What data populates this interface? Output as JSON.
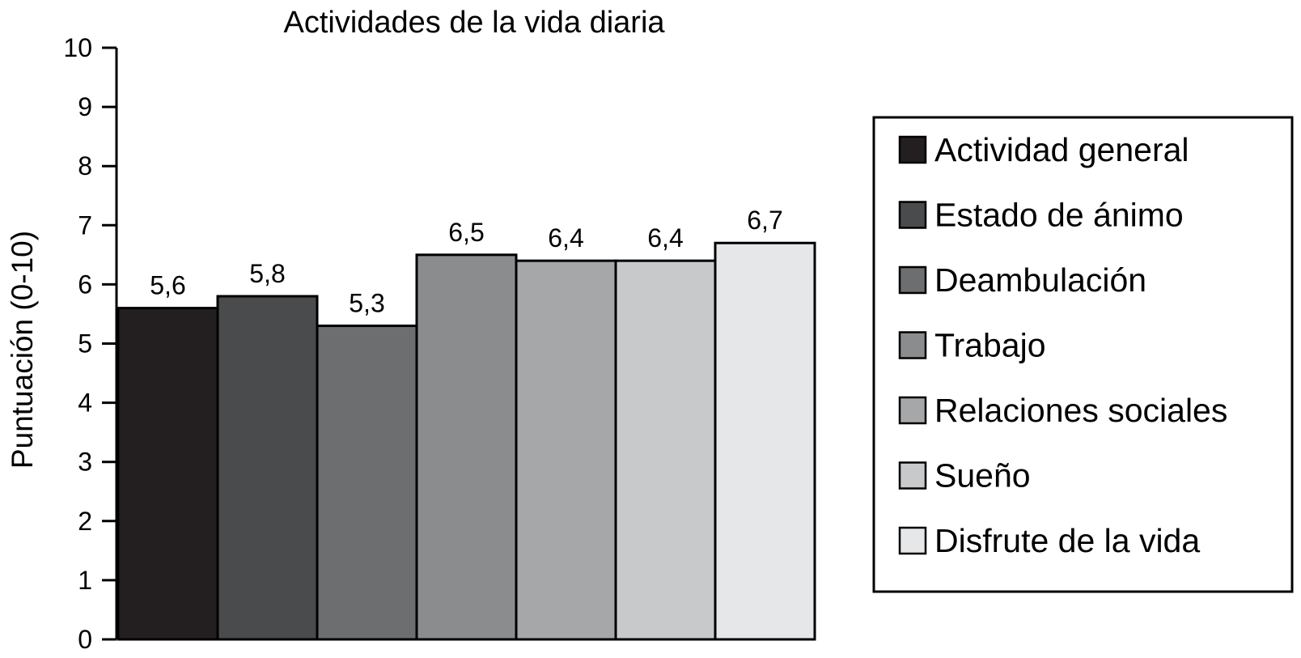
{
  "chart_data": {
    "type": "bar",
    "title": "Actividades de la vida diaria",
    "ylabel": "Puntuación (0-10)",
    "xlabel": "",
    "ylim": [
      0,
      10
    ],
    "yticks": [
      "0",
      "1",
      "2",
      "3",
      "4",
      "5",
      "6",
      "7",
      "8",
      "9",
      "10"
    ],
    "grid": false,
    "legend_position": "right",
    "series": [
      {
        "name": "Actividad general",
        "value": 5.6,
        "label": "5,6",
        "color": "#231f20"
      },
      {
        "name": "Estado de ánimo",
        "value": 5.8,
        "label": "5,8",
        "color": "#4a4b4d"
      },
      {
        "name": "Deambulación",
        "value": 5.3,
        "label": "5,3",
        "color": "#6d6e70"
      },
      {
        "name": "Trabajo",
        "value": 6.5,
        "label": "6,5",
        "color": "#8b8c8e"
      },
      {
        "name": "Relaciones sociales",
        "value": 6.4,
        "label": "6,4",
        "color": "#a6a7a9"
      },
      {
        "name": "Sueño",
        "value": 6.4,
        "label": "6,4",
        "color": "#c8c9cb"
      },
      {
        "name": "Disfrute de la vida",
        "value": 6.7,
        "label": "6,7",
        "color": "#e6e7e8"
      }
    ]
  }
}
